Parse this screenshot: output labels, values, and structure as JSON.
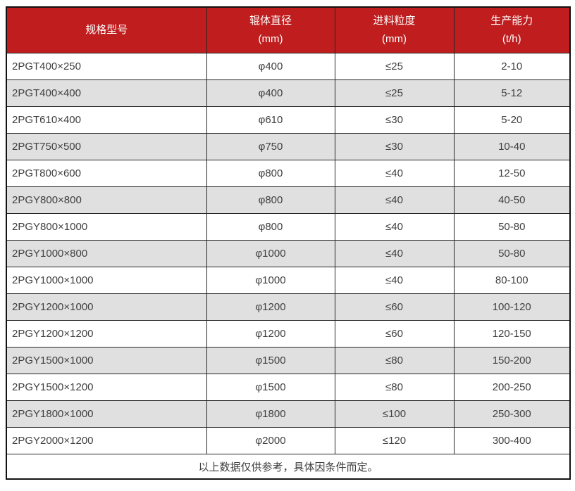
{
  "chart_data": {
    "type": "table",
    "title": "",
    "columns": [
      {
        "label": "规格型号",
        "unit": ""
      },
      {
        "label": "辊体直径",
        "unit": "(mm)"
      },
      {
        "label": "进料粒度",
        "unit": "(mm)"
      },
      {
        "label": "生产能力",
        "unit": "(t/h)"
      }
    ],
    "rows": [
      [
        "2PGT400×250",
        "φ400",
        "≤25",
        "2-10"
      ],
      [
        "2PGT400×400",
        "φ400",
        "≤25",
        "5-12"
      ],
      [
        "2PGT610×400",
        "φ610",
        "≤30",
        "5-20"
      ],
      [
        "2PGT750×500",
        "φ750",
        "≤30",
        "10-40"
      ],
      [
        "2PGT800×600",
        "φ800",
        "≤40",
        "12-50"
      ],
      [
        "2PGY800×800",
        "φ800",
        "≤40",
        "40-50"
      ],
      [
        "2PGY800×1000",
        "φ800",
        "≤40",
        "50-80"
      ],
      [
        "2PGY1000×800",
        "φ1000",
        "≤40",
        "50-80"
      ],
      [
        "2PGY1000×1000",
        "φ1000",
        "≤40",
        "80-100"
      ],
      [
        "2PGY1200×1000",
        "φ1200",
        "≤60",
        "100-120"
      ],
      [
        "2PGY1200×1200",
        "φ1200",
        "≤60",
        "120-150"
      ],
      [
        "2PGY1500×1000",
        "φ1500",
        "≤80",
        "150-200"
      ],
      [
        "2PGY1500×1200",
        "φ1500",
        "≤80",
        "200-250"
      ],
      [
        "2PGY1800×1000",
        "φ1800",
        "≤100",
        "250-300"
      ],
      [
        "2PGY2000×1200",
        "φ2000",
        "≤120",
        "300-400"
      ]
    ],
    "footer_note": "以上数据仅供参考，具体因条件而定。"
  },
  "style": {
    "header_bg": "#bf1d1e",
    "header_text_color": "#ffffff",
    "row_bg": "#ffffff",
    "row_alt_bg": "#e0e0e0",
    "border_color": "#262626",
    "body_text_color": "#404040"
  }
}
